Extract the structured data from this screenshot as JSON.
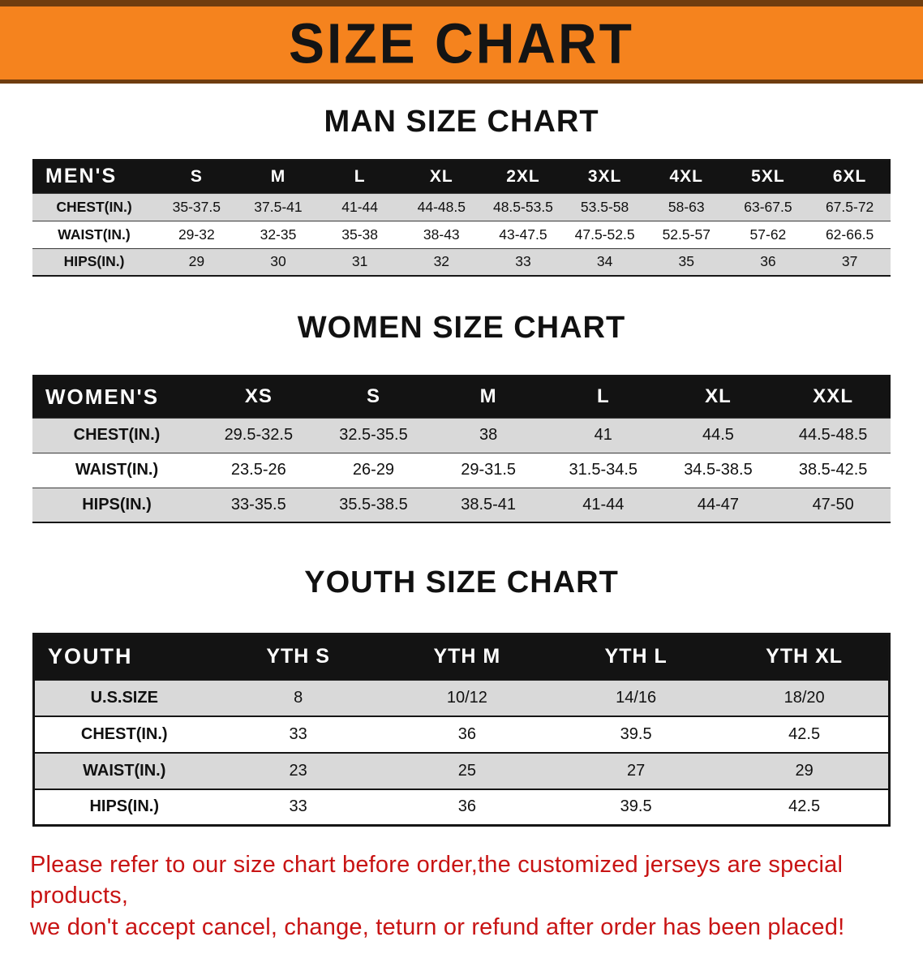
{
  "colors": {
    "banner-orange": "#F5831E",
    "header-black": "#131313",
    "stripe-gray": "#D9D9D9",
    "warning-red": "#C81414"
  },
  "banner": {
    "title": "SIZE CHART"
  },
  "sections": [
    {
      "id": "men",
      "heading": "MAN SIZE CHART",
      "table": {
        "title": "MEN'S",
        "columns": [
          "S",
          "M",
          "L",
          "XL",
          "2XL",
          "3XL",
          "4XL",
          "5XL",
          "6XL"
        ],
        "rows": [
          {
            "label": "CHEST(IN.)",
            "values": [
              "35-37.5",
              "37.5-41",
              "41-44",
              "44-48.5",
              "48.5-53.5",
              "53.5-58",
              "58-63",
              "63-67.5",
              "67.5-72"
            ]
          },
          {
            "label": "WAIST(IN.)",
            "values": [
              "29-32",
              "32-35",
              "35-38",
              "38-43",
              "43-47.5",
              "47.5-52.5",
              "52.5-57",
              "57-62",
              "62-66.5"
            ]
          },
          {
            "label": "HIPS(IN.)",
            "values": [
              "29",
              "30",
              "31",
              "32",
              "33",
              "34",
              "35",
              "36",
              "37"
            ]
          }
        ]
      }
    },
    {
      "id": "women",
      "heading": "WOMEN SIZE CHART",
      "table": {
        "title": "WOMEN'S",
        "columns": [
          "XS",
          "S",
          "M",
          "L",
          "XL",
          "XXL"
        ],
        "rows": [
          {
            "label": "CHEST(IN.)",
            "values": [
              "29.5-32.5",
              "32.5-35.5",
              "38",
              "41",
              "44.5",
              "44.5-48.5"
            ]
          },
          {
            "label": "WAIST(IN.)",
            "values": [
              "23.5-26",
              "26-29",
              "29-31.5",
              "31.5-34.5",
              "34.5-38.5",
              "38.5-42.5"
            ]
          },
          {
            "label": "HIPS(IN.)",
            "values": [
              "33-35.5",
              "35.5-38.5",
              "38.5-41",
              "41-44",
              "44-47",
              "47-50"
            ]
          }
        ]
      }
    },
    {
      "id": "youth",
      "heading": "YOUTH SIZE CHART",
      "table": {
        "title": "YOUTH",
        "columns": [
          "YTH S",
          "YTH M",
          "YTH L",
          "YTH XL"
        ],
        "rows": [
          {
            "label": "U.S.SIZE",
            "values": [
              "8",
              "10/12",
              "14/16",
              "18/20"
            ]
          },
          {
            "label": "CHEST(IN.)",
            "values": [
              "33",
              "36",
              "39.5",
              "42.5"
            ]
          },
          {
            "label": "WAIST(IN.)",
            "values": [
              "23",
              "25",
              "27",
              "29"
            ]
          },
          {
            "label": "HIPS(IN.)",
            "values": [
              "33",
              "36",
              "39.5",
              "42.5"
            ]
          }
        ]
      }
    }
  ],
  "disclaimer": {
    "line1": "Please refer to our size chart before order,the customized jerseys are special products,",
    "line2": "we don't accept cancel, change, teturn or refund after order has been placed!"
  }
}
